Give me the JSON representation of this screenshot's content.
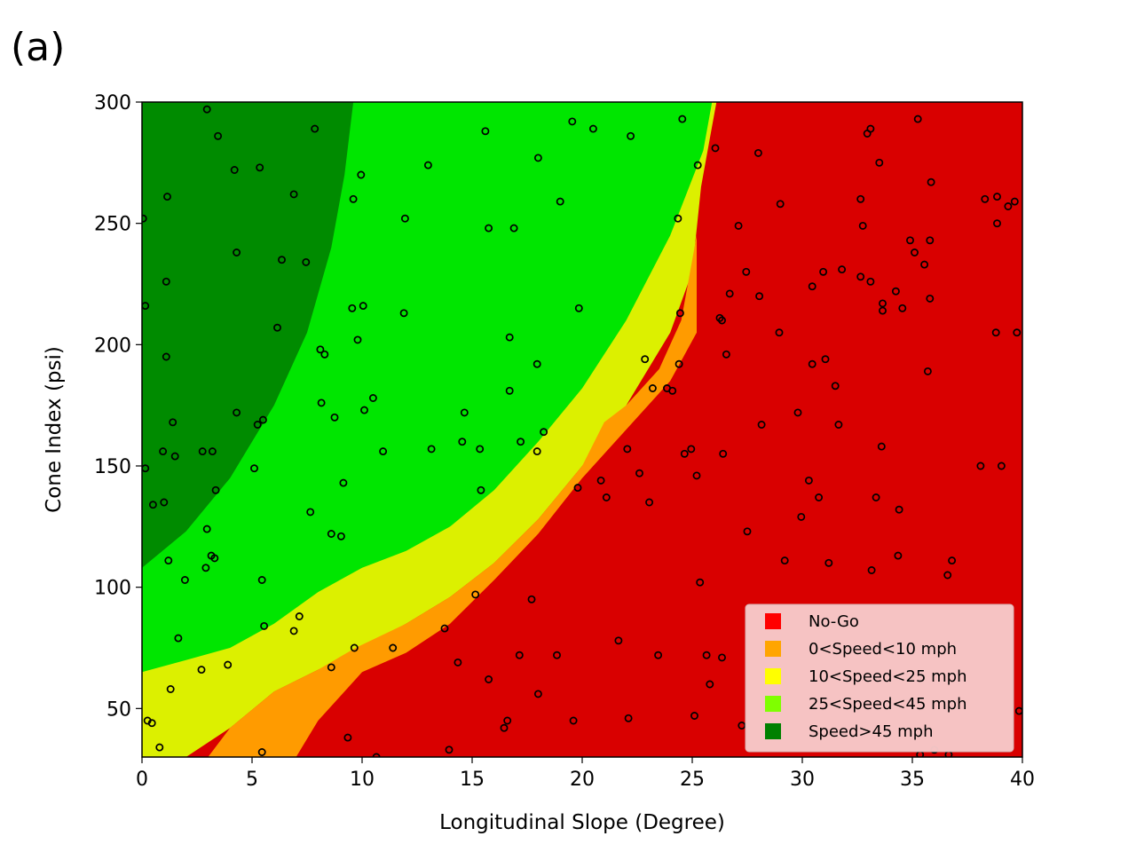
{
  "panel_label": "(a)",
  "chart_data": {
    "type": "scatter",
    "title": "",
    "xlabel": "Longitudinal Slope (Degree)",
    "ylabel": "Cone Index (psi)",
    "xlim": [
      0,
      40
    ],
    "ylim": [
      30,
      300
    ],
    "x_ticks": [
      0,
      5,
      10,
      15,
      20,
      25,
      30,
      35,
      40
    ],
    "y_ticks": [
      50,
      100,
      150,
      200,
      250,
      300
    ],
    "x_tick_labels": [
      "0",
      "5",
      "10",
      "15",
      "20",
      "25",
      "30",
      "35",
      "40"
    ],
    "y_tick_labels": [
      "50",
      "100",
      "150",
      "200",
      "250",
      "300"
    ],
    "grid": false,
    "legend_position": "lower-right",
    "legend": [
      {
        "label": "No-Go",
        "color": "#ff0000"
      },
      {
        "label": "0<Speed<10 mph",
        "color": "#ffa500"
      },
      {
        "label": "10<Speed<25 mph",
        "color": "#ffff00"
      },
      {
        "label": "25<Speed<45 mph",
        "color": "#7fff00"
      },
      {
        "label": "Speed>45 mph",
        "color": "#008000"
      }
    ],
    "region_colors": {
      "no_go": "#d90000",
      "orange": "#ff9b00",
      "yellow": "#dcf000",
      "green": "#00e600",
      "dark_green": "#008b00"
    },
    "boundaries": {
      "dark_green_upper": [
        [
          0,
          108
        ],
        [
          2,
          123
        ],
        [
          4,
          145
        ],
        [
          6,
          175
        ],
        [
          7.5,
          205
        ],
        [
          8.6,
          240
        ],
        [
          9.2,
          270
        ],
        [
          9.6,
          300
        ]
      ],
      "green_upper": [
        [
          0,
          65
        ],
        [
          2,
          70
        ],
        [
          4,
          75
        ],
        [
          6,
          85
        ],
        [
          8,
          98
        ],
        [
          10,
          108
        ],
        [
          12,
          115
        ],
        [
          14,
          125
        ],
        [
          16,
          140
        ],
        [
          18,
          160
        ],
        [
          20,
          182
        ],
        [
          22,
          210
        ],
        [
          24,
          245
        ],
        [
          25.5,
          280
        ],
        [
          25.9,
          300
        ]
      ],
      "yellow_upper": [
        [
          0,
          30
        ],
        [
          2,
          30
        ],
        [
          4,
          42
        ],
        [
          6,
          57
        ],
        [
          8,
          66
        ],
        [
          10,
          75
        ],
        [
          12,
          85
        ],
        [
          14,
          96
        ],
        [
          16,
          110
        ],
        [
          18,
          128
        ],
        [
          20,
          150
        ],
        [
          22,
          175
        ],
        [
          24,
          205
        ],
        [
          25,
          230
        ],
        [
          25.4,
          265
        ],
        [
          25.8,
          285
        ],
        [
          26.1,
          300
        ]
      ],
      "orange_upper": [
        [
          3,
          30
        ],
        [
          4,
          42
        ],
        [
          6,
          57
        ],
        [
          8,
          66
        ],
        [
          9.7,
          75
        ],
        [
          12,
          85
        ],
        [
          14,
          96
        ],
        [
          16,
          110
        ],
        [
          18,
          128
        ],
        [
          20,
          150
        ],
        [
          21,
          168
        ],
        [
          22,
          175
        ],
        [
          23.5,
          190
        ],
        [
          24.5,
          210
        ],
        [
          25.2,
          245
        ]
      ],
      "orange_right": [
        [
          25.2,
          245
        ],
        [
          25.2,
          205
        ],
        [
          24,
          185
        ],
        [
          22,
          165
        ],
        [
          20,
          145
        ],
        [
          18,
          122
        ],
        [
          16,
          103
        ],
        [
          14,
          85
        ],
        [
          12,
          73
        ],
        [
          10,
          65
        ],
        [
          8,
          45
        ],
        [
          7,
          30
        ]
      ]
    },
    "points": [
      {
        "x": 0.05,
        "y": 252
      },
      {
        "x": 0.15,
        "y": 216
      },
      {
        "x": 0.15,
        "y": 149
      },
      {
        "x": 0.25,
        "y": 45
      },
      {
        "x": 0.45,
        "y": 44
      },
      {
        "x": 0.5,
        "y": 134
      },
      {
        "x": 0.8,
        "y": 34
      },
      {
        "x": 0.95,
        "y": 156
      },
      {
        "x": 1.0,
        "y": 135
      },
      {
        "x": 1.1,
        "y": 195
      },
      {
        "x": 1.1,
        "y": 226
      },
      {
        "x": 1.15,
        "y": 261
      },
      {
        "x": 1.2,
        "y": 111
      },
      {
        "x": 1.3,
        "y": 58
      },
      {
        "x": 1.4,
        "y": 168
      },
      {
        "x": 1.5,
        "y": 154
      },
      {
        "x": 1.65,
        "y": 79
      },
      {
        "x": 1.95,
        "y": 103
      },
      {
        "x": 2.7,
        "y": 66
      },
      {
        "x": 2.75,
        "y": 156
      },
      {
        "x": 2.9,
        "y": 108
      },
      {
        "x": 2.95,
        "y": 124
      },
      {
        "x": 2.95,
        "y": 297
      },
      {
        "x": 3.15,
        "y": 113
      },
      {
        "x": 3.2,
        "y": 156
      },
      {
        "x": 3.3,
        "y": 112
      },
      {
        "x": 3.35,
        "y": 140
      },
      {
        "x": 3.45,
        "y": 286
      },
      {
        "x": 3.9,
        "y": 68
      },
      {
        "x": 4.2,
        "y": 272
      },
      {
        "x": 4.3,
        "y": 172
      },
      {
        "x": 4.3,
        "y": 238
      },
      {
        "x": 5.1,
        "y": 149
      },
      {
        "x": 5.25,
        "y": 167
      },
      {
        "x": 5.35,
        "y": 273
      },
      {
        "x": 5.45,
        "y": 103
      },
      {
        "x": 5.45,
        "y": 32
      },
      {
        "x": 5.5,
        "y": 169
      },
      {
        "x": 5.55,
        "y": 84
      },
      {
        "x": 6.15,
        "y": 207
      },
      {
        "x": 6.35,
        "y": 235
      },
      {
        "x": 6.9,
        "y": 82
      },
      {
        "x": 6.9,
        "y": 262
      },
      {
        "x": 7.15,
        "y": 88
      },
      {
        "x": 7.45,
        "y": 234
      },
      {
        "x": 7.65,
        "y": 131
      },
      {
        "x": 7.85,
        "y": 289
      },
      {
        "x": 8.1,
        "y": 198
      },
      {
        "x": 8.15,
        "y": 176
      },
      {
        "x": 8.3,
        "y": 196
      },
      {
        "x": 8.6,
        "y": 67
      },
      {
        "x": 8.6,
        "y": 122
      },
      {
        "x": 8.75,
        "y": 170
      },
      {
        "x": 9.05,
        "y": 121
      },
      {
        "x": 9.15,
        "y": 143
      },
      {
        "x": 9.35,
        "y": 38
      },
      {
        "x": 9.55,
        "y": 215
      },
      {
        "x": 9.6,
        "y": 260
      },
      {
        "x": 9.65,
        "y": 75
      },
      {
        "x": 9.8,
        "y": 202
      },
      {
        "x": 9.95,
        "y": 270
      },
      {
        "x": 10.05,
        "y": 216
      },
      {
        "x": 10.1,
        "y": 173
      },
      {
        "x": 10.5,
        "y": 178
      },
      {
        "x": 10.65,
        "y": 30
      },
      {
        "x": 10.95,
        "y": 156
      },
      {
        "x": 11.4,
        "y": 75
      },
      {
        "x": 11.9,
        "y": 213
      },
      {
        "x": 11.95,
        "y": 252
      },
      {
        "x": 13.0,
        "y": 274
      },
      {
        "x": 13.15,
        "y": 157
      },
      {
        "x": 13.75,
        "y": 83
      },
      {
        "x": 13.95,
        "y": 33
      },
      {
        "x": 14.35,
        "y": 69
      },
      {
        "x": 14.55,
        "y": 160
      },
      {
        "x": 14.65,
        "y": 172
      },
      {
        "x": 15.15,
        "y": 97
      },
      {
        "x": 15.35,
        "y": 157
      },
      {
        "x": 15.4,
        "y": 140
      },
      {
        "x": 15.6,
        "y": 288
      },
      {
        "x": 15.75,
        "y": 62
      },
      {
        "x": 15.75,
        "y": 248
      },
      {
        "x": 16.45,
        "y": 42
      },
      {
        "x": 16.6,
        "y": 45
      },
      {
        "x": 16.7,
        "y": 181
      },
      {
        "x": 16.7,
        "y": 203
      },
      {
        "x": 16.9,
        "y": 248
      },
      {
        "x": 17.15,
        "y": 72
      },
      {
        "x": 17.2,
        "y": 160
      },
      {
        "x": 17.7,
        "y": 95
      },
      {
        "x": 17.95,
        "y": 156
      },
      {
        "x": 17.95,
        "y": 192
      },
      {
        "x": 18.0,
        "y": 56
      },
      {
        "x": 18.0,
        "y": 277
      },
      {
        "x": 18.25,
        "y": 164
      },
      {
        "x": 18.85,
        "y": 72
      },
      {
        "x": 19.0,
        "y": 259
      },
      {
        "x": 19.55,
        "y": 292
      },
      {
        "x": 19.6,
        "y": 45
      },
      {
        "x": 19.8,
        "y": 141
      },
      {
        "x": 19.85,
        "y": 215
      },
      {
        "x": 20.5,
        "y": 289
      },
      {
        "x": 20.85,
        "y": 144
      },
      {
        "x": 21.1,
        "y": 137
      },
      {
        "x": 21.65,
        "y": 78
      },
      {
        "x": 22.05,
        "y": 157
      },
      {
        "x": 22.1,
        "y": 46
      },
      {
        "x": 22.2,
        "y": 286
      },
      {
        "x": 22.6,
        "y": 147
      },
      {
        "x": 22.85,
        "y": 194
      },
      {
        "x": 23.05,
        "y": 135
      },
      {
        "x": 23.2,
        "y": 182
      },
      {
        "x": 23.45,
        "y": 72
      },
      {
        "x": 23.85,
        "y": 182
      },
      {
        "x": 24.1,
        "y": 181
      },
      {
        "x": 24.35,
        "y": 252
      },
      {
        "x": 24.4,
        "y": 192
      },
      {
        "x": 24.45,
        "y": 213
      },
      {
        "x": 24.55,
        "y": 293
      },
      {
        "x": 24.65,
        "y": 155
      },
      {
        "x": 24.95,
        "y": 157
      },
      {
        "x": 25.1,
        "y": 47
      },
      {
        "x": 25.2,
        "y": 146
      },
      {
        "x": 25.25,
        "y": 274
      },
      {
        "x": 25.35,
        "y": 102
      },
      {
        "x": 25.65,
        "y": 72
      },
      {
        "x": 25.8,
        "y": 60
      },
      {
        "x": 26.05,
        "y": 281
      },
      {
        "x": 26.25,
        "y": 211
      },
      {
        "x": 26.35,
        "y": 210
      },
      {
        "x": 26.35,
        "y": 71
      },
      {
        "x": 26.4,
        "y": 155
      },
      {
        "x": 26.55,
        "y": 196
      },
      {
        "x": 26.7,
        "y": 221
      },
      {
        "x": 27.1,
        "y": 249
      },
      {
        "x": 27.25,
        "y": 43
      },
      {
        "x": 27.45,
        "y": 230
      },
      {
        "x": 27.5,
        "y": 123
      },
      {
        "x": 28.0,
        "y": 279
      },
      {
        "x": 28.05,
        "y": 220
      },
      {
        "x": 28.15,
        "y": 167
      },
      {
        "x": 28.95,
        "y": 205
      },
      {
        "x": 29.0,
        "y": 258
      },
      {
        "x": 29.2,
        "y": 111
      },
      {
        "x": 29.8,
        "y": 172
      },
      {
        "x": 29.95,
        "y": 129
      },
      {
        "x": 30.3,
        "y": 144
      },
      {
        "x": 30.45,
        "y": 192
      },
      {
        "x": 30.45,
        "y": 224
      },
      {
        "x": 30.75,
        "y": 137
      },
      {
        "x": 30.95,
        "y": 230
      },
      {
        "x": 31.05,
        "y": 194
      },
      {
        "x": 31.2,
        "y": 110
      },
      {
        "x": 31.5,
        "y": 183
      },
      {
        "x": 31.65,
        "y": 167
      },
      {
        "x": 31.8,
        "y": 231
      },
      {
        "x": 32.65,
        "y": 260
      },
      {
        "x": 32.65,
        "y": 228
      },
      {
        "x": 32.75,
        "y": 249
      },
      {
        "x": 32.95,
        "y": 287
      },
      {
        "x": 33.1,
        "y": 289
      },
      {
        "x": 33.1,
        "y": 226
      },
      {
        "x": 33.15,
        "y": 107
      },
      {
        "x": 33.35,
        "y": 137
      },
      {
        "x": 33.5,
        "y": 275
      },
      {
        "x": 33.6,
        "y": 158
      },
      {
        "x": 33.65,
        "y": 214
      },
      {
        "x": 33.65,
        "y": 217
      },
      {
        "x": 34.25,
        "y": 222
      },
      {
        "x": 34.35,
        "y": 113
      },
      {
        "x": 34.4,
        "y": 132
      },
      {
        "x": 34.55,
        "y": 215
      },
      {
        "x": 34.9,
        "y": 243
      },
      {
        "x": 35.1,
        "y": 238
      },
      {
        "x": 35.25,
        "y": 293
      },
      {
        "x": 35.35,
        "y": 31
      },
      {
        "x": 35.55,
        "y": 233
      },
      {
        "x": 35.7,
        "y": 189
      },
      {
        "x": 35.8,
        "y": 219
      },
      {
        "x": 35.8,
        "y": 243
      },
      {
        "x": 35.85,
        "y": 267
      },
      {
        "x": 36.0,
        "y": 33
      },
      {
        "x": 36.6,
        "y": 105
      },
      {
        "x": 36.65,
        "y": 31
      },
      {
        "x": 36.8,
        "y": 111
      },
      {
        "x": 38.1,
        "y": 150
      },
      {
        "x": 38.3,
        "y": 260
      },
      {
        "x": 38.8,
        "y": 205
      },
      {
        "x": 38.85,
        "y": 250
      },
      {
        "x": 38.85,
        "y": 261
      },
      {
        "x": 39.05,
        "y": 150
      },
      {
        "x": 39.35,
        "y": 257
      },
      {
        "x": 39.65,
        "y": 259
      },
      {
        "x": 39.75,
        "y": 205
      },
      {
        "x": 39.85,
        "y": 49
      }
    ]
  }
}
